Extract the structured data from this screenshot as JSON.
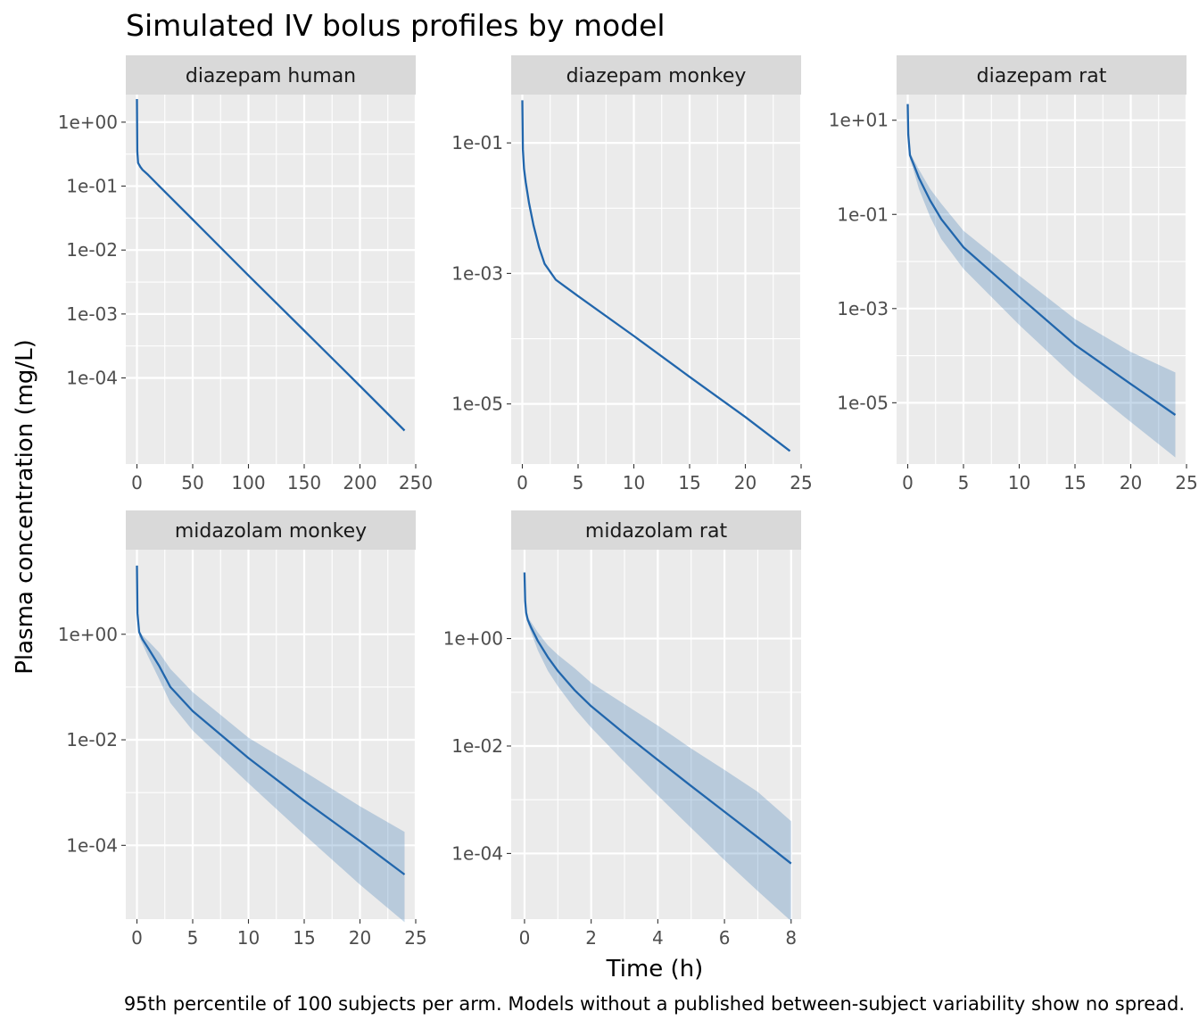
{
  "chart_data": {
    "type": "line",
    "title": "Simulated IV bolus profiles by model",
    "xlabel": "Time (h)",
    "ylabel": "Plasma concentration (mg/L)",
    "caption": "95th percentile of 100 subjects per arm. Models without a published between-subject variability show no spread.",
    "y_scale": "log10",
    "grid": true,
    "colors": {
      "line": "#2166ac",
      "ribbon": "#2166ac",
      "panel": "#ebebeb",
      "strip": "#d9d9d9",
      "grid": "#ffffff"
    },
    "panels": [
      {
        "label": "diazepam human",
        "xlim": [
          -10,
          250
        ],
        "ylim": [
          4.5e-06,
          2.7
        ],
        "x_ticks": [
          0,
          50,
          100,
          150,
          200,
          250
        ],
        "x_tick_labels": [
          "0",
          "50",
          "100",
          "150",
          "200",
          "250"
        ],
        "y_ticks": [
          1,
          0.1,
          0.01,
          0.001,
          0.0001
        ],
        "y_tick_labels": [
          "1e+00",
          "1e-01",
          "1e-02",
          "1e-03",
          "1e-04"
        ],
        "x": [
          0,
          0.3,
          1,
          3,
          5,
          10,
          20,
          50,
          100,
          150,
          200,
          240
        ],
        "median": [
          2.3,
          0.35,
          0.23,
          0.2,
          0.18,
          0.15,
          0.1,
          0.03,
          0.004,
          0.00055,
          7.5e-05,
          1.5e-05
        ],
        "lower": null,
        "upper": null
      },
      {
        "label": "diazepam monkey",
        "xlim": [
          -1,
          25
        ],
        "ylim": [
          1.2e-06,
          0.55
        ],
        "x_ticks": [
          0,
          5,
          10,
          15,
          20,
          25
        ],
        "x_tick_labels": [
          "0",
          "5",
          "10",
          "15",
          "20",
          "25"
        ],
        "y_ticks": [
          0.1,
          0.001,
          1e-05
        ],
        "y_tick_labels": [
          "1e-01",
          "1e-03",
          "1e-05"
        ],
        "x": [
          0,
          0.05,
          0.15,
          0.3,
          0.6,
          1,
          1.5,
          2,
          3,
          5,
          10,
          15,
          20,
          24
        ],
        "median": [
          0.45,
          0.08,
          0.04,
          0.025,
          0.012,
          0.0055,
          0.0025,
          0.0014,
          0.0008,
          0.00045,
          0.00011,
          2.6e-05,
          6.3e-06,
          1.9e-06
        ],
        "lower": null,
        "upper": null
      },
      {
        "label": "diazepam rat",
        "xlim": [
          -1,
          25
        ],
        "ylim": [
          5e-07,
          35
        ],
        "x_ticks": [
          0,
          5,
          10,
          15,
          20,
          25
        ],
        "x_tick_labels": [
          "0",
          "5",
          "10",
          "15",
          "20",
          "25"
        ],
        "y_ticks": [
          10,
          0.1,
          0.001,
          1e-05
        ],
        "y_tick_labels": [
          "1e+01",
          "1e-01",
          "1e-03",
          "1e-05"
        ],
        "x": [
          0,
          0.05,
          0.2,
          0.5,
          1,
          2,
          3,
          5,
          10,
          15,
          20,
          24
        ],
        "median": [
          22,
          5,
          1.8,
          1.2,
          0.6,
          0.2,
          0.08,
          0.02,
          0.0018,
          0.00017,
          2.5e-05,
          5.5e-06
        ],
        "lower": [
          null,
          null,
          1.5,
          0.9,
          0.35,
          0.09,
          0.03,
          0.007,
          0.00045,
          3.5e-05,
          3.9e-06,
          6.9e-07
        ],
        "upper": [
          null,
          null,
          2.1,
          1.5,
          0.9,
          0.35,
          0.17,
          0.045,
          0.005,
          0.0006,
          0.00012,
          4.4e-05
        ]
      },
      {
        "label": "midazolam monkey",
        "xlim": [
          -1,
          25
        ],
        "ylim": [
          4e-06,
          40
        ],
        "x_ticks": [
          0,
          5,
          10,
          15,
          20,
          25
        ],
        "x_tick_labels": [
          "0",
          "5",
          "10",
          "15",
          "20",
          "25"
        ],
        "y_ticks": [
          1,
          0.01,
          0.0001
        ],
        "y_tick_labels": [
          "1e+00",
          "1e-02",
          "1e-04"
        ],
        "x": [
          0,
          0.05,
          0.2,
          0.5,
          1,
          2,
          3,
          5,
          10,
          15,
          20,
          24
        ],
        "median": [
          20,
          2.5,
          1.1,
          0.8,
          0.55,
          0.25,
          0.1,
          0.035,
          0.0045,
          0.0007,
          0.00012,
          2.8e-05
        ],
        "lower": [
          null,
          null,
          0.9,
          0.65,
          0.38,
          0.14,
          0.05,
          0.015,
          0.0015,
          0.00016,
          1.8e-05,
          3.5e-06
        ],
        "upper": [
          null,
          null,
          1.2,
          0.95,
          0.75,
          0.45,
          0.22,
          0.08,
          0.011,
          0.0025,
          0.00055,
          0.00018
        ]
      },
      {
        "label": "midazolam rat",
        "xlim": [
          -0.4,
          8.3
        ],
        "ylim": [
          6e-06,
          45
        ],
        "x_ticks": [
          0,
          2,
          4,
          6,
          8
        ],
        "x_tick_labels": [
          "0",
          "2",
          "4",
          "6",
          "8"
        ],
        "y_ticks": [
          1,
          0.01,
          0.0001
        ],
        "y_tick_labels": [
          "1e+00",
          "1e-02",
          "1e-04"
        ],
        "x": [
          0,
          0.02,
          0.05,
          0.1,
          0.2,
          0.4,
          0.7,
          1,
          1.5,
          2,
          3,
          4,
          5,
          6,
          7,
          8
        ],
        "median": [
          17,
          5,
          3,
          2.2,
          1.6,
          0.9,
          0.45,
          0.25,
          0.11,
          0.055,
          0.017,
          0.0055,
          0.0018,
          0.0006,
          0.0002,
          6.5e-05
        ],
        "lower": [
          null,
          null,
          null,
          1.9,
          1.3,
          0.6,
          0.25,
          0.13,
          0.05,
          0.022,
          0.005,
          0.0012,
          0.0003,
          7.5e-05,
          2e-05,
          5.5e-06
        ],
        "upper": [
          null,
          null,
          null,
          2.5,
          2.0,
          1.3,
          0.75,
          0.5,
          0.28,
          0.15,
          0.06,
          0.024,
          0.009,
          0.0036,
          0.0014,
          0.0004
        ]
      }
    ]
  }
}
